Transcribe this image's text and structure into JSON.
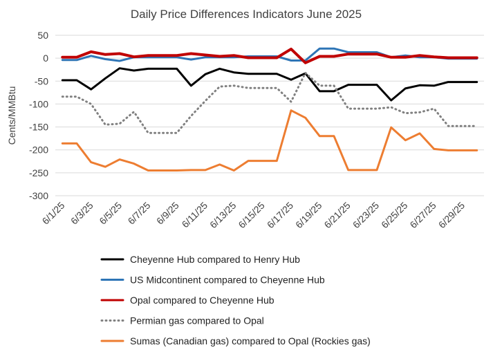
{
  "chart_data": {
    "type": "line",
    "title": "Daily Price Differences Indicators June 2025",
    "ylabel": "Cents/MMBtu",
    "xlabel": "",
    "ylim": [
      -300,
      50
    ],
    "yticks": [
      50,
      0,
      -50,
      -100,
      -150,
      -200,
      -250,
      -300
    ],
    "x": [
      "6/1/25",
      "6/2/25",
      "6/3/25",
      "6/4/25",
      "6/5/25",
      "6/6/25",
      "6/7/25",
      "6/8/25",
      "6/9/25",
      "6/10/25",
      "6/11/25",
      "6/12/25",
      "6/13/25",
      "6/14/25",
      "6/15/25",
      "6/16/25",
      "6/17/25",
      "6/18/25",
      "6/19/25",
      "6/20/25",
      "6/21/25",
      "6/22/25",
      "6/23/25",
      "6/24/25",
      "6/25/25",
      "6/26/25",
      "6/27/25",
      "6/28/25",
      "6/29/25",
      "6/30/25"
    ],
    "xtick_labels": [
      "6/1/25",
      "6/3/25",
      "6/5/25",
      "6/7/25",
      "6/9/25",
      "6/11/25",
      "6/13/25",
      "6/15/25",
      "6/17/25",
      "6/19/25",
      "6/21/25",
      "6/23/25",
      "6/25/25",
      "6/27/25",
      "6/29/25"
    ],
    "grid": true,
    "legend_position": "bottom",
    "series": [
      {
        "name": "Cheyenne Hub compared to Henry Hub",
        "color": "#000000",
        "style": "solid",
        "values": [
          -48,
          -48,
          -68,
          -44,
          -22,
          -27,
          -23,
          -23,
          -23,
          -60,
          -35,
          -23,
          -31,
          -34,
          -34,
          -34,
          -47,
          -33,
          -72,
          -72,
          -58,
          -58,
          -58,
          -92,
          -66,
          -59,
          -60,
          -52,
          -52,
          -52
        ]
      },
      {
        "name": "US Midcontinent compared to Cheyenne Hub",
        "color": "#2e75b6",
        "style": "solid",
        "values": [
          -4,
          -4,
          5,
          -2,
          -6,
          2,
          2,
          2,
          2,
          -3,
          2,
          2,
          2,
          4,
          4,
          4,
          -5,
          -5,
          21,
          21,
          13,
          13,
          13,
          2,
          6,
          2,
          2,
          -1,
          -1,
          -1
        ]
      },
      {
        "name": "Opal compared to Cheyenne Hub",
        "color": "#c00000",
        "style": "solid",
        "values": [
          2,
          2,
          14,
          8,
          10,
          3,
          6,
          6,
          6,
          10,
          7,
          4,
          6,
          1,
          1,
          1,
          20,
          -10,
          4,
          4,
          9,
          9,
          9,
          2,
          2,
          6,
          3,
          1,
          1,
          1
        ]
      },
      {
        "name": "Permian gas compared to Opal",
        "color": "#808080",
        "style": "dotted",
        "values": [
          -84,
          -84,
          -100,
          -145,
          -143,
          -117,
          -163,
          -163,
          -163,
          -126,
          -93,
          -62,
          -60,
          -65,
          -65,
          -65,
          -95,
          -32,
          -60,
          -60,
          -110,
          -110,
          -110,
          -107,
          -120,
          -118,
          -110,
          -148,
          -148,
          -148
        ]
      },
      {
        "name": "Sumas (Canadian gas) compared to Opal (Rockies gas)",
        "color": "#ed7d31",
        "style": "solid",
        "values": [
          -186,
          -186,
          -227,
          -237,
          -221,
          -230,
          -245,
          -245,
          -245,
          -244,
          -244,
          -232,
          -245,
          -224,
          -224,
          -224,
          -114,
          -130,
          -170,
          -170,
          -244,
          -244,
          -244,
          -151,
          -179,
          -164,
          -198,
          -201,
          -201,
          -201
        ]
      }
    ]
  }
}
